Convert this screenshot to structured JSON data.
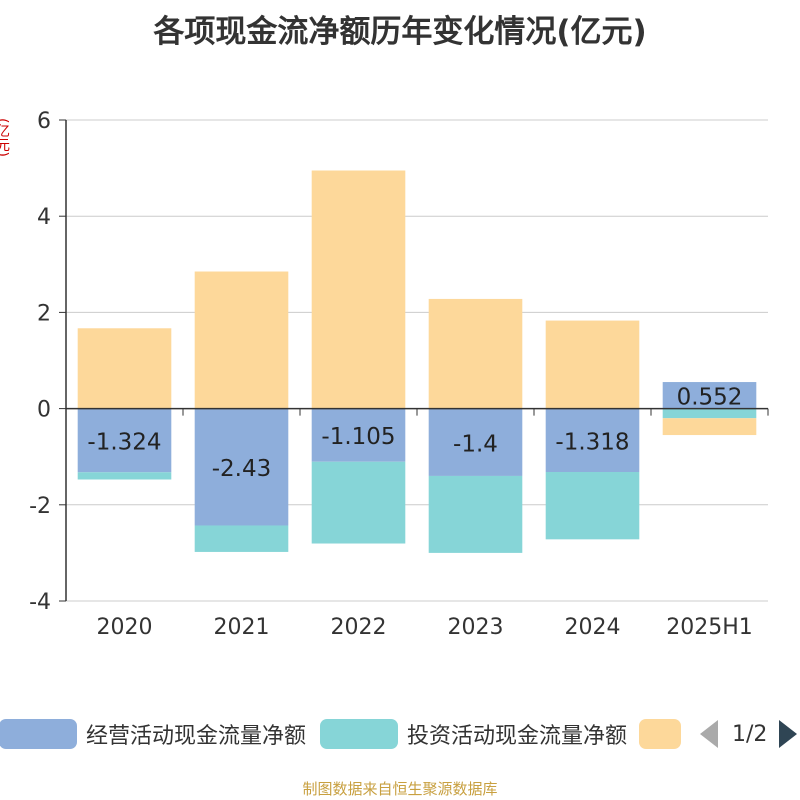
{
  "chart_data": {
    "type": "bar",
    "stacked": true,
    "title": "各项现金流净额历年变化情况(亿元)",
    "ylabel": "(亿元)",
    "categories": [
      "2020",
      "2021",
      "2022",
      "2023",
      "2024",
      "2025H1"
    ],
    "ylim": [
      -4,
      6
    ],
    "yticks": [
      -4,
      -2,
      0,
      2,
      4,
      6
    ],
    "grid": true,
    "legend_position": "bottom",
    "series": [
      {
        "name": "经营活动现金流量净额",
        "color": "#8eaedb",
        "values": [
          -1.324,
          -2.43,
          -1.105,
          -1.4,
          -1.318,
          0.552
        ],
        "labels": [
          "-1.324",
          "-2.43",
          "-1.105",
          "-1.4",
          "-1.318",
          "0.552"
        ]
      },
      {
        "name": "投资活动现金流量净额",
        "color": "#86d5d7",
        "values": [
          -0.15,
          -0.55,
          -1.7,
          -1.6,
          -1.4,
          -0.2
        ]
      },
      {
        "name": "",
        "color": "#fdd89a",
        "values": [
          1.67,
          2.85,
          4.95,
          2.28,
          1.83,
          -0.35
        ]
      }
    ]
  },
  "legend": {
    "items": [
      "经营活动现金流量净额",
      "投资活动现金流量净额",
      ""
    ],
    "page": "1/2"
  },
  "source": "制图数据来自恒生聚源数据库"
}
